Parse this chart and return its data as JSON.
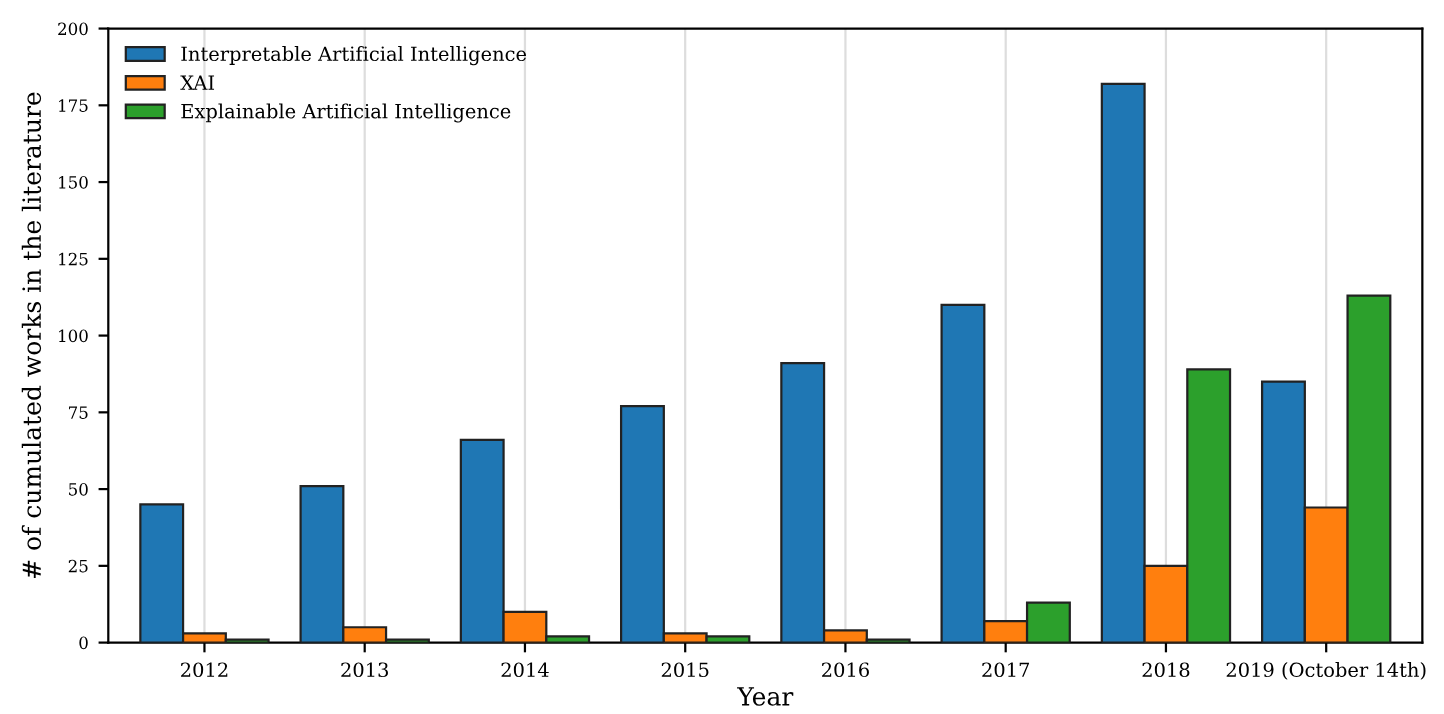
{
  "chart_data": {
    "type": "bar",
    "xlabel": "Year",
    "ylabel": "# of cumulated works in the literature",
    "categories": [
      "2012",
      "2013",
      "2014",
      "2015",
      "2016",
      "2017",
      "2018",
      "2019 (October 14th)"
    ],
    "series": [
      {
        "name": "Interpretable Artificial Intelligence",
        "color": "#1f77b4",
        "values": [
          45,
          51,
          66,
          77,
          91,
          110,
          182,
          85
        ]
      },
      {
        "name": "XAI",
        "color": "#ff7f0e",
        "values": [
          3,
          5,
          10,
          3,
          4,
          7,
          25,
          44
        ]
      },
      {
        "name": "Explainable Artificial Intelligence",
        "color": "#2ca02c",
        "values": [
          1,
          1,
          2,
          2,
          1,
          13,
          89,
          113
        ]
      }
    ],
    "ylim": [
      0,
      200
    ],
    "yticks": [
      0,
      25,
      50,
      75,
      100,
      125,
      150,
      175,
      200
    ],
    "grid": "x",
    "legend": "top left"
  }
}
